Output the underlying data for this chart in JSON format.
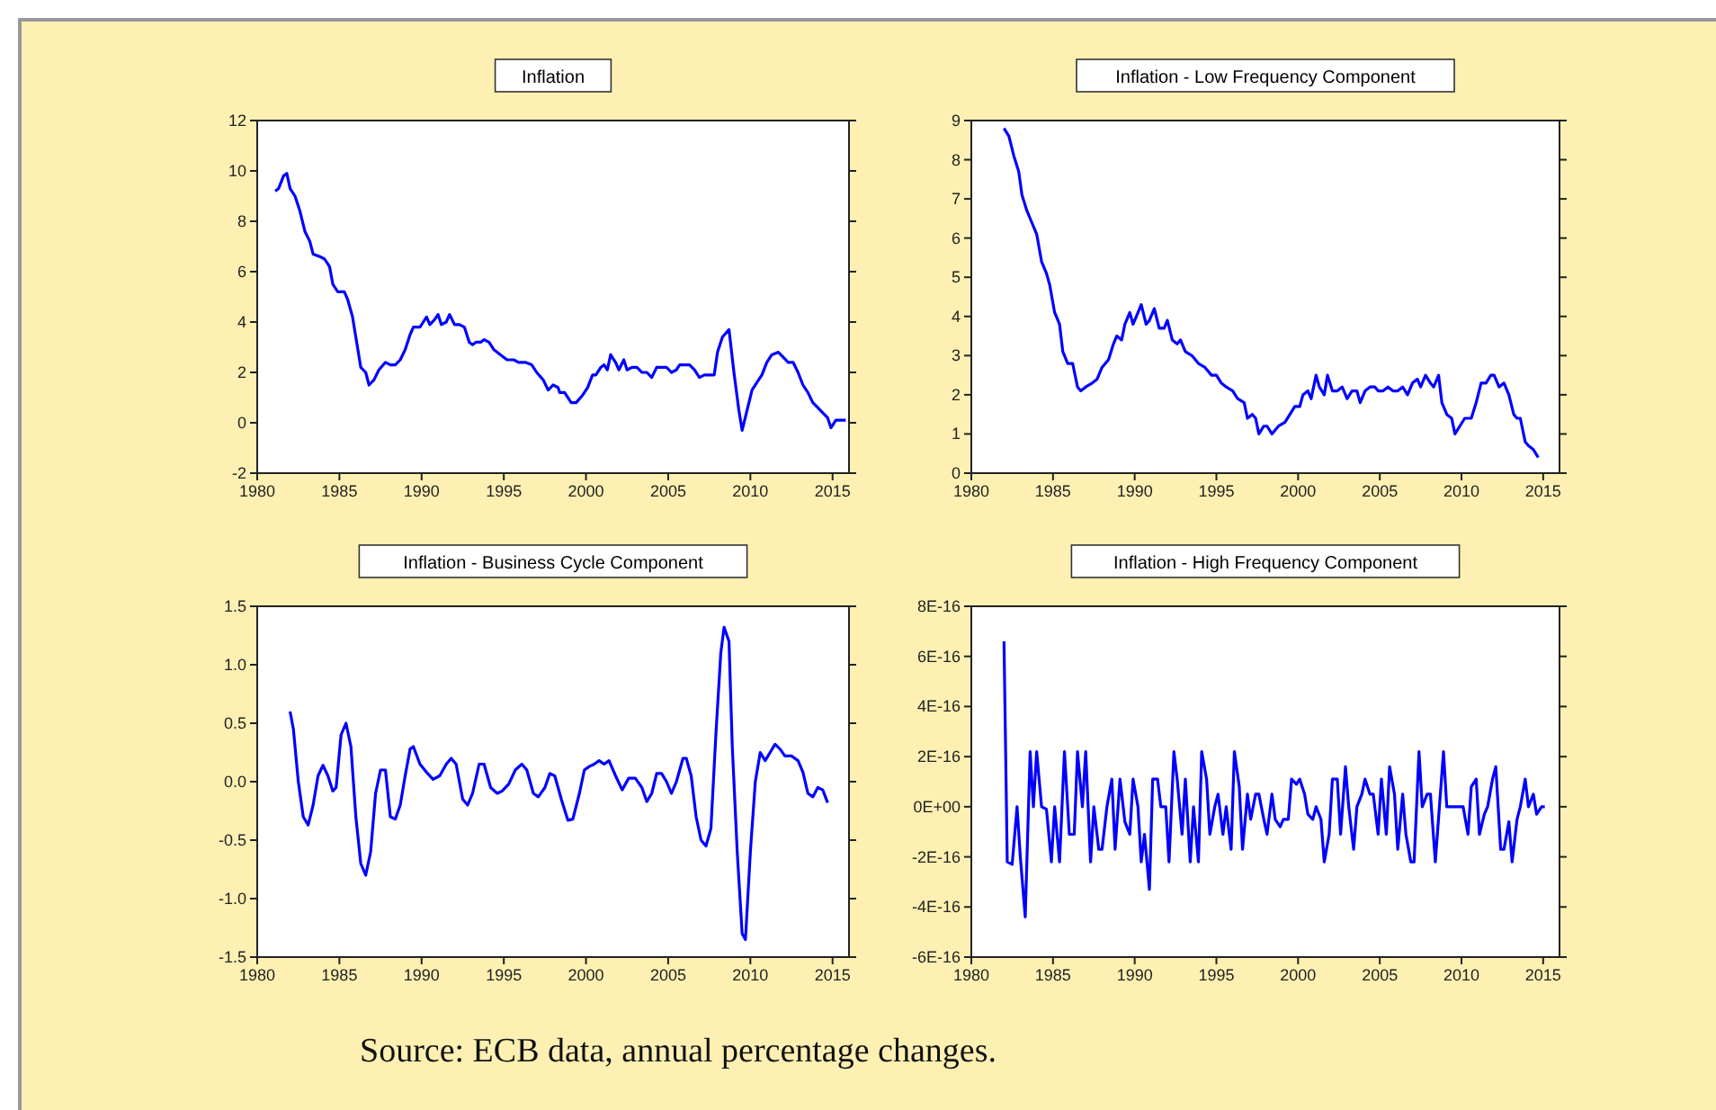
{
  "chart_data": [
    {
      "type": "line",
      "title": "Inflation",
      "xlim": [
        1980,
        2016
      ],
      "xticks": [
        1980,
        1985,
        1990,
        1995,
        2000,
        2005,
        2010,
        2015
      ],
      "ylim": [
        -2,
        12
      ],
      "yticks": [
        -2,
        0,
        2,
        4,
        6,
        8,
        10,
        12
      ],
      "series": [
        {
          "color": "#0000ff",
          "x": [
            1981.1,
            1981.3,
            1981.6,
            1981.8,
            1982.0,
            1982.3,
            1982.6,
            1982.9,
            1983.2,
            1983.4,
            1983.8,
            1984.1,
            1984.4,
            1984.6,
            1984.9,
            1985.3,
            1985.5,
            1985.8,
            1986.1,
            1986.3,
            1986.6,
            1986.8,
            1987.1,
            1987.4,
            1987.8,
            1988.1,
            1988.4,
            1988.7,
            1989.0,
            1989.3,
            1989.5,
            1989.9,
            1990.1,
            1990.3,
            1990.5,
            1990.8,
            1991.0,
            1991.2,
            1991.5,
            1991.7,
            1992.0,
            1992.3,
            1992.6,
            1992.9,
            1993.1,
            1993.3,
            1993.6,
            1993.8,
            1994.1,
            1994.4,
            1994.8,
            1995.2,
            1995.6,
            1995.9,
            1996.3,
            1996.7,
            1997.0,
            1997.4,
            1997.7,
            1998.0,
            1998.3,
            1998.4,
            1998.7,
            1999.1,
            1999.4,
            1999.8,
            2000.1,
            2000.4,
            2000.6,
            2000.9,
            2001.1,
            2001.3,
            2001.5,
            2001.8,
            2002.0,
            2002.3,
            2002.5,
            2002.8,
            2003.1,
            2003.4,
            2003.7,
            2004.0,
            2004.3,
            2004.6,
            2004.9,
            2005.2,
            2005.5,
            2005.7,
            2006.0,
            2006.3,
            2006.6,
            2006.9,
            2007.2,
            2007.6,
            2007.8,
            2008.0,
            2008.3,
            2008.7,
            2009.0,
            2009.3,
            2009.5,
            2009.8,
            2010.1,
            2010.4,
            2010.7,
            2011.0,
            2011.3,
            2011.7,
            2012.0,
            2012.3,
            2012.6,
            2012.9,
            2013.2,
            2013.5,
            2013.8,
            2014.1,
            2014.4,
            2014.7,
            2014.9,
            2015.2,
            2015.5,
            2015.8
          ],
          "values": [
            9.2,
            9.3,
            9.8,
            9.9,
            9.3,
            9.0,
            8.4,
            7.6,
            7.2,
            6.7,
            6.6,
            6.5,
            6.2,
            5.5,
            5.2,
            5.2,
            4.9,
            4.2,
            3.0,
            2.2,
            2.0,
            1.5,
            1.7,
            2.1,
            2.4,
            2.3,
            2.3,
            2.5,
            2.9,
            3.5,
            3.8,
            3.8,
            4.0,
            4.2,
            3.9,
            4.1,
            4.3,
            3.9,
            4.0,
            4.3,
            3.9,
            3.9,
            3.8,
            3.2,
            3.1,
            3.2,
            3.2,
            3.3,
            3.2,
            2.9,
            2.7,
            2.5,
            2.5,
            2.4,
            2.4,
            2.3,
            2.0,
            1.7,
            1.3,
            1.5,
            1.4,
            1.2,
            1.2,
            0.8,
            0.8,
            1.1,
            1.4,
            1.9,
            1.9,
            2.2,
            2.3,
            2.1,
            2.7,
            2.4,
            2.1,
            2.5,
            2.1,
            2.2,
            2.2,
            2.0,
            2.0,
            1.8,
            2.2,
            2.2,
            2.2,
            2.0,
            2.1,
            2.3,
            2.3,
            2.3,
            2.1,
            1.8,
            1.9,
            1.9,
            1.9,
            2.8,
            3.4,
            3.7,
            2.0,
            0.5,
            -0.3,
            0.5,
            1.3,
            1.6,
            1.9,
            2.4,
            2.7,
            2.8,
            2.6,
            2.4,
            2.4,
            2.0,
            1.5,
            1.2,
            0.8,
            0.6,
            0.4,
            0.2,
            -0.2,
            0.1,
            0.1,
            0.1
          ]
        }
      ]
    },
    {
      "type": "line",
      "title": "Inflation - Low Frequency Component",
      "xlim": [
        1980,
        2016
      ],
      "xticks": [
        1980,
        1985,
        1990,
        1995,
        2000,
        2005,
        2010,
        2015
      ],
      "ylim": [
        0,
        9
      ],
      "yticks": [
        0,
        1,
        2,
        3,
        4,
        5,
        6,
        7,
        8,
        9
      ],
      "series": [
        {
          "color": "#0000ff",
          "x": [
            1982.0,
            1982.3,
            1982.6,
            1982.9,
            1983.1,
            1983.4,
            1983.7,
            1984.0,
            1984.3,
            1984.6,
            1984.8,
            1985.1,
            1985.4,
            1985.6,
            1985.9,
            1986.2,
            1986.5,
            1986.7,
            1987.0,
            1987.4,
            1987.7,
            1988.0,
            1988.4,
            1988.7,
            1988.9,
            1989.2,
            1989.4,
            1989.7,
            1989.9,
            1990.1,
            1990.4,
            1990.7,
            1990.9,
            1991.2,
            1991.5,
            1991.8,
            1992.0,
            1992.3,
            1992.6,
            1992.8,
            1993.1,
            1993.5,
            1993.9,
            1994.3,
            1994.7,
            1995.0,
            1995.3,
            1995.6,
            1996.0,
            1996.3,
            1996.7,
            1996.9,
            1997.2,
            1997.4,
            1997.6,
            1997.9,
            1998.1,
            1998.4,
            1998.8,
            1999.2,
            1999.5,
            1999.8,
            2000.1,
            2000.3,
            2000.6,
            2000.8,
            2001.1,
            2001.3,
            2001.6,
            2001.8,
            2002.1,
            2002.4,
            2002.7,
            2003.0,
            2003.3,
            2003.6,
            2003.8,
            2004.1,
            2004.4,
            2004.7,
            2004.9,
            2005.2,
            2005.5,
            2005.8,
            2006.1,
            2006.4,
            2006.7,
            2007.0,
            2007.3,
            2007.5,
            2007.8,
            2008.1,
            2008.3,
            2008.6,
            2008.8,
            2009.1,
            2009.4,
            2009.6,
            2009.9,
            2010.2,
            2010.6,
            2010.9,
            2011.2,
            2011.5,
            2011.8,
            2012.0,
            2012.3,
            2012.6,
            2012.9,
            2013.2,
            2013.4,
            2013.6,
            2013.9,
            2014.1,
            2014.4,
            2014.7
          ],
          "values": [
            8.8,
            8.6,
            8.1,
            7.7,
            7.1,
            6.7,
            6.4,
            6.1,
            5.4,
            5.1,
            4.8,
            4.1,
            3.8,
            3.1,
            2.8,
            2.8,
            2.2,
            2.1,
            2.2,
            2.3,
            2.4,
            2.7,
            2.9,
            3.3,
            3.5,
            3.4,
            3.8,
            4.1,
            3.8,
            4.0,
            4.3,
            3.8,
            3.9,
            4.2,
            3.7,
            3.7,
            3.9,
            3.4,
            3.3,
            3.4,
            3.1,
            3.0,
            2.8,
            2.7,
            2.5,
            2.5,
            2.3,
            2.2,
            2.1,
            1.9,
            1.8,
            1.4,
            1.5,
            1.4,
            1.0,
            1.2,
            1.2,
            1.0,
            1.2,
            1.3,
            1.5,
            1.7,
            1.7,
            2.0,
            2.1,
            1.9,
            2.5,
            2.2,
            2.0,
            2.5,
            2.1,
            2.1,
            2.2,
            1.9,
            2.1,
            2.1,
            1.8,
            2.1,
            2.2,
            2.2,
            2.1,
            2.1,
            2.2,
            2.1,
            2.1,
            2.2,
            2.0,
            2.3,
            2.4,
            2.2,
            2.5,
            2.3,
            2.2,
            2.5,
            1.8,
            1.5,
            1.4,
            1.0,
            1.2,
            1.4,
            1.4,
            1.8,
            2.3,
            2.3,
            2.5,
            2.5,
            2.2,
            2.3,
            2.0,
            1.5,
            1.4,
            1.4,
            0.8,
            0.7,
            0.6,
            0.4
          ]
        }
      ]
    },
    {
      "type": "line",
      "title": "Inflation - Business Cycle Component",
      "xlim": [
        1980,
        2016
      ],
      "xticks": [
        1980,
        1985,
        1990,
        1995,
        2000,
        2005,
        2010,
        2015
      ],
      "ylim": [
        -1.5,
        1.5
      ],
      "yticks": [
        {
          "value": -1.5,
          "label": "-1.5"
        },
        {
          "value": -1,
          "label": "-1.0"
        },
        {
          "value": -0.5,
          "label": "-0.5"
        },
        {
          "value": 0,
          "label": "0.0"
        },
        {
          "value": 0.5,
          "label": "0.5"
        },
        {
          "value": 1,
          "label": "1.0"
        },
        {
          "value": 1.5,
          "label": "1.5"
        }
      ],
      "series": [
        {
          "color": "#0000ff",
          "x": [
            1982.0,
            1982.2,
            1982.5,
            1982.8,
            1983.1,
            1983.4,
            1983.7,
            1984.0,
            1984.3,
            1984.6,
            1984.8,
            1985.1,
            1985.4,
            1985.7,
            1986.0,
            1986.3,
            1986.6,
            1986.9,
            1987.2,
            1987.5,
            1987.8,
            1988.1,
            1988.4,
            1988.7,
            1989.0,
            1989.3,
            1989.5,
            1989.9,
            1990.3,
            1990.7,
            1991.1,
            1991.5,
            1991.8,
            1992.1,
            1992.5,
            1992.8,
            1993.1,
            1993.5,
            1993.8,
            1994.2,
            1994.6,
            1994.9,
            1995.3,
            1995.7,
            1996.1,
            1996.4,
            1996.8,
            1997.1,
            1997.5,
            1997.8,
            1998.1,
            1998.5,
            1998.9,
            1999.2,
            1999.6,
            1999.9,
            2000.2,
            2000.5,
            2000.8,
            2001.1,
            2001.4,
            2001.8,
            2002.2,
            2002.6,
            2003.0,
            2003.4,
            2003.7,
            2004.0,
            2004.3,
            2004.6,
            2004.9,
            2005.2,
            2005.5,
            2005.9,
            2006.1,
            2006.4,
            2006.7,
            2007.0,
            2007.3,
            2007.6,
            2007.9,
            2008.2,
            2008.4,
            2008.7,
            2008.9,
            2009.2,
            2009.5,
            2009.7,
            2010.0,
            2010.3,
            2010.6,
            2010.9,
            2011.2,
            2011.5,
            2011.8,
            2012.1,
            2012.5,
            2012.9,
            2013.2,
            2013.5,
            2013.8,
            2014.1,
            2014.4,
            2014.7
          ],
          "values": [
            0.6,
            0.45,
            0.0,
            -0.3,
            -0.37,
            -0.2,
            0.05,
            0.14,
            0.05,
            -0.08,
            -0.05,
            0.4,
            0.5,
            0.3,
            -0.3,
            -0.7,
            -0.8,
            -0.6,
            -0.1,
            0.1,
            0.1,
            -0.3,
            -0.32,
            -0.2,
            0.05,
            0.28,
            0.3,
            0.15,
            0.08,
            0.02,
            0.05,
            0.15,
            0.2,
            0.15,
            -0.15,
            -0.2,
            -0.1,
            0.15,
            0.15,
            -0.05,
            -0.1,
            -0.08,
            -0.02,
            0.1,
            0.15,
            0.1,
            -0.1,
            -0.13,
            -0.05,
            0.07,
            0.05,
            -0.15,
            -0.33,
            -0.32,
            -0.1,
            0.1,
            0.13,
            0.15,
            0.18,
            0.15,
            0.18,
            0.05,
            -0.07,
            0.03,
            0.03,
            -0.05,
            -0.17,
            -0.1,
            0.07,
            0.07,
            0.0,
            -0.1,
            0.0,
            0.2,
            0.2,
            0.05,
            -0.3,
            -0.5,
            -0.55,
            -0.4,
            0.4,
            1.1,
            1.32,
            1.2,
            0.3,
            -0.6,
            -1.3,
            -1.35,
            -0.6,
            0.0,
            0.25,
            0.18,
            0.25,
            0.32,
            0.28,
            0.22,
            0.22,
            0.18,
            0.08,
            -0.1,
            -0.13,
            -0.05,
            -0.07,
            -0.18
          ]
        }
      ]
    },
    {
      "type": "line",
      "title": "Inflation - High Frequency Component",
      "xlim": [
        1980,
        2016
      ],
      "xticks": [
        1980,
        1985,
        1990,
        1995,
        2000,
        2005,
        2010,
        2015
      ],
      "ylim": [
        -6e-16,
        8e-16
      ],
      "yticks": [
        {
          "value": -6e-16,
          "label": "-6E-16"
        },
        {
          "value": -4e-16,
          "label": "-4E-16"
        },
        {
          "value": -2e-16,
          "label": "-2E-16"
        },
        {
          "value": 0,
          "label": "0E+00"
        },
        {
          "value": 2e-16,
          "label": "2E-16"
        },
        {
          "value": 4e-16,
          "label": "4E-16"
        },
        {
          "value": 6e-16,
          "label": "6E-16"
        },
        {
          "value": 8e-16,
          "label": "8E-16"
        }
      ],
      "annotations": [
        "Source: ECB data, annual percentage changes."
      ],
      "series": [
        {
          "color": "#0000ff",
          "x": [
            1982.0,
            1982.2,
            1982.5,
            1982.8,
            1983.0,
            1983.3,
            1983.6,
            1983.8,
            1984.0,
            1984.3,
            1984.6,
            1984.9,
            1985.1,
            1985.4,
            1985.7,
            1986.0,
            1986.3,
            1986.5,
            1986.8,
            1987.0,
            1987.3,
            1987.5,
            1987.8,
            1988.0,
            1988.3,
            1988.6,
            1988.8,
            1989.1,
            1989.4,
            1989.7,
            1989.9,
            1990.2,
            1990.4,
            1990.6,
            1990.9,
            1991.1,
            1991.4,
            1991.6,
            1991.9,
            1992.1,
            1992.4,
            1992.6,
            1992.9,
            1993.1,
            1993.4,
            1993.6,
            1993.9,
            1994.1,
            1994.4,
            1994.6,
            1994.9,
            1995.1,
            1995.4,
            1995.6,
            1995.9,
            1996.1,
            1996.4,
            1996.6,
            1996.9,
            1997.1,
            1997.4,
            1997.6,
            1997.9,
            1998.1,
            1998.4,
            1998.6,
            1998.9,
            1999.1,
            1999.4,
            1999.6,
            1999.9,
            2000.1,
            2000.4,
            2000.6,
            2000.9,
            2001.1,
            2001.4,
            2001.6,
            2001.9,
            2002.1,
            2002.4,
            2002.6,
            2002.9,
            2003.1,
            2003.4,
            2003.6,
            2003.9,
            2004.1,
            2004.4,
            2004.6,
            2004.9,
            2005.1,
            2005.4,
            2005.6,
            2005.9,
            2006.1,
            2006.4,
            2006.6,
            2006.9,
            2007.1,
            2007.4,
            2007.6,
            2007.9,
            2008.1,
            2008.4,
            2008.9,
            2009.1,
            2009.4,
            2009.9,
            2010.1,
            2010.4,
            2010.6,
            2010.9,
            2011.1,
            2011.4,
            2011.6,
            2011.9,
            2012.1,
            2012.4,
            2012.6,
            2012.9,
            2013.1,
            2013.4,
            2013.6,
            2013.9,
            2014.1,
            2014.4,
            2014.6,
            2014.9,
            2015.1
          ],
          "values": [
            6.6e-16,
            -2.2e-16,
            -2.3e-16,
            0,
            -2e-16,
            -4.4e-16,
            2.2e-16,
            0,
            2.2e-16,
            0,
            -1e-17,
            -2.2e-16,
            0,
            -2.2e-16,
            2.2e-16,
            -1.1e-16,
            -1.1e-16,
            2.2e-16,
            0,
            2.2e-16,
            -2.2e-16,
            0,
            -1.7e-16,
            -1.7e-16,
            0,
            1.1e-16,
            -1.7e-16,
            1.1e-16,
            -6e-17,
            -1.1e-16,
            1.1e-16,
            0,
            -2.2e-16,
            -1.1e-16,
            -3.3e-16,
            1.1e-16,
            1.1e-16,
            0,
            0,
            -2.2e-16,
            2.2e-16,
            1.1e-16,
            -1.1e-16,
            1.1e-16,
            -2.2e-16,
            0,
            -2.2e-16,
            2.2e-16,
            1.1e-16,
            -1.1e-16,
            0,
            5e-17,
            -1.1e-16,
            0,
            -1.7e-16,
            2.2e-16,
            8e-17,
            -1.7e-16,
            5e-17,
            -5e-17,
            5e-17,
            5e-17,
            -5e-17,
            -1.1e-16,
            5e-17,
            -5e-17,
            -8e-17,
            -5e-17,
            -5e-17,
            1.1e-16,
            9e-17,
            1.1e-16,
            5e-17,
            -3e-17,
            -5e-17,
            0,
            -5e-17,
            -2.2e-16,
            -1.1e-16,
            1.1e-16,
            1.1e-16,
            -1.1e-16,
            1.6e-16,
            0,
            -1.7e-16,
            0,
            5e-17,
            1.1e-16,
            5e-17,
            5e-17,
            -1.1e-16,
            1.1e-16,
            -1.1e-16,
            1.6e-16,
            5e-17,
            -1.7e-16,
            5e-17,
            -1.1e-16,
            -2.2e-16,
            -2.2e-16,
            2.2e-16,
            0,
            5e-17,
            5e-17,
            -2.2e-16,
            2.2e-16,
            0,
            0,
            0,
            0,
            -1.1e-16,
            8e-17,
            1.1e-16,
            -1.1e-16,
            -3e-17,
            0,
            1.1e-16,
            1.6e-16,
            -1.7e-16,
            -1.7e-16,
            -6e-17,
            -2.2e-16,
            -5e-17,
            0,
            1.1e-16,
            0,
            5e-17,
            -3e-17,
            0,
            0
          ]
        }
      ]
    }
  ]
}
